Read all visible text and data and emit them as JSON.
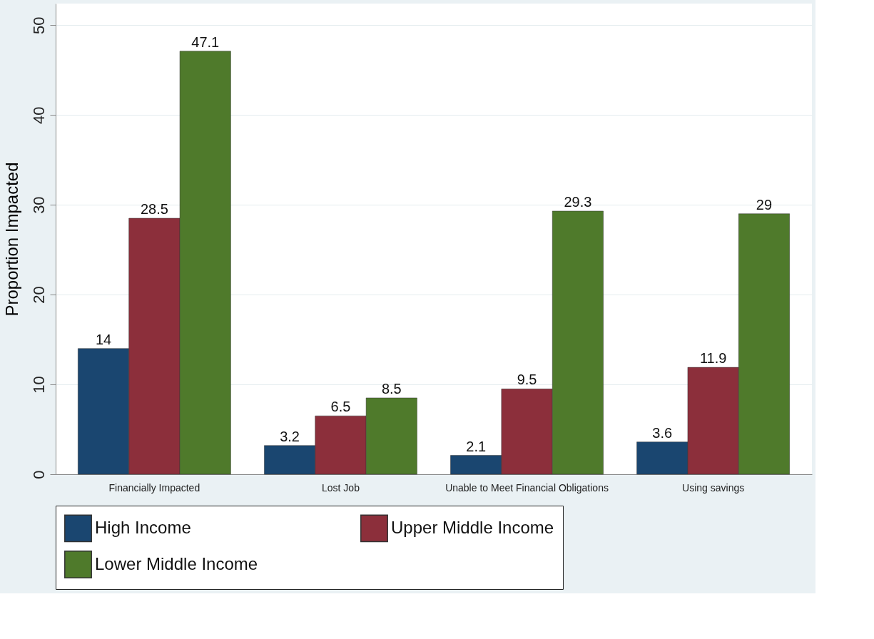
{
  "chart_data": {
    "type": "bar",
    "ylabel": "Proportion Impacted",
    "categories": [
      "Financially Impacted",
      "Lost Job",
      "Unable to Meet Financial Obligations",
      "Using savings"
    ],
    "series": [
      {
        "name": "High Income",
        "color": "#1a4670",
        "values": [
          14,
          3.2,
          2.1,
          3.6
        ]
      },
      {
        "name": "Upper Middle Income",
        "color": "#8c2f3b",
        "values": [
          28.5,
          6.5,
          9.5,
          11.9
        ]
      },
      {
        "name": "Lower Middle Income",
        "color": "#4f7a2b",
        "values": [
          47.1,
          8.5,
          29.3,
          29
        ]
      }
    ],
    "ylim": [
      0,
      52.4
    ],
    "yticks": [
      0,
      10,
      20,
      30,
      40,
      50
    ],
    "grid": "y",
    "legend": "bottom",
    "data_labels": true
  }
}
